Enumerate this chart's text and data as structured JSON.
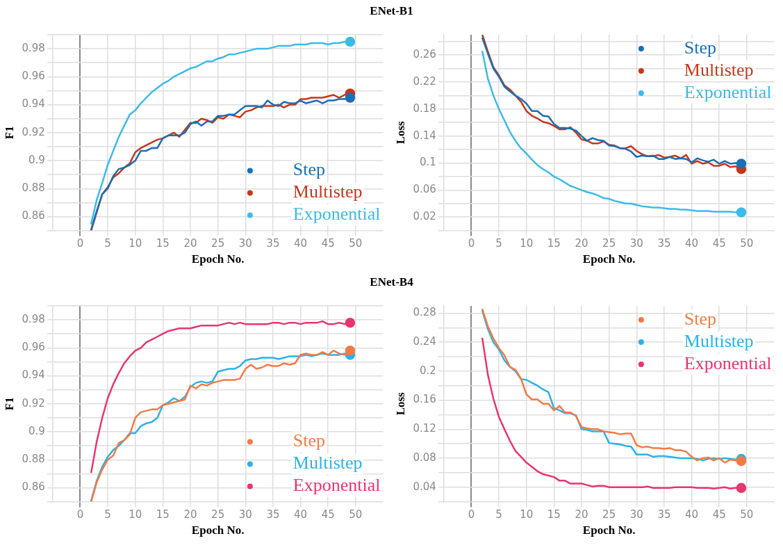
{
  "chart_data": [
    {
      "type": "line",
      "title": "ENet-B1",
      "xlabel": "Epoch No.",
      "ylabel": "F1",
      "legend": "bottom right",
      "grid": true,
      "xlim": [
        -5,
        55
      ],
      "xticks": [
        0,
        5,
        10,
        15,
        20,
        25,
        30,
        35,
        40,
        45,
        50
      ],
      "ylim": [
        0.85,
        0.99
      ],
      "yticks": [
        {
          "value": 0.85,
          "label": null
        },
        0.86,
        {
          "value": 0.87,
          "label": null
        },
        0.88,
        {
          "value": 0.89,
          "label": null
        },
        0.9,
        {
          "value": 0.91,
          "label": null
        },
        0.92,
        {
          "value": 0.93,
          "label": null
        },
        0.94,
        {
          "value": 0.95,
          "label": null
        },
        0.96,
        {
          "value": 0.97,
          "label": null
        },
        0.98,
        {
          "value": 0.99,
          "label": null
        }
      ],
      "x": [
        2,
        3,
        4,
        5,
        6,
        7,
        8,
        9,
        10,
        11,
        12,
        13,
        14,
        15,
        16,
        17,
        18,
        19,
        20,
        21,
        22,
        23,
        24,
        25,
        26,
        27,
        28,
        29,
        30,
        31,
        32,
        33,
        34,
        35,
        36,
        37,
        38,
        39,
        40,
        41,
        42,
        43,
        44,
        45,
        46,
        47,
        48,
        49
      ],
      "series": [
        {
          "name": "Step",
          "color": "#1a6fb5",
          "values": [
            0.851,
            0.864,
            0.876,
            0.88,
            0.889,
            0.894,
            0.895,
            0.897,
            0.9,
            0.907,
            0.907,
            0.909,
            0.909,
            0.916,
            0.918,
            0.918,
            0.918,
            0.92,
            0.926,
            0.928,
            0.925,
            0.928,
            0.928,
            0.932,
            0.932,
            0.933,
            0.933,
            0.936,
            0.939,
            0.939,
            0.939,
            0.938,
            0.943,
            0.94,
            0.939,
            0.942,
            0.941,
            0.941,
            0.943,
            0.941,
            0.942,
            0.943,
            0.941,
            0.943,
            0.943,
            0.944,
            0.944,
            0.945
          ]
        },
        {
          "name": "Multistep",
          "color": "#c8361a",
          "values": [
            0.85,
            0.863,
            0.876,
            0.881,
            0.888,
            0.891,
            0.895,
            0.898,
            0.906,
            0.909,
            0.911,
            0.913,
            0.915,
            0.916,
            0.918,
            0.92,
            0.917,
            0.922,
            0.927,
            0.927,
            0.93,
            0.929,
            0.927,
            0.931,
            0.93,
            0.933,
            0.932,
            0.931,
            0.935,
            0.936,
            0.938,
            0.939,
            0.939,
            0.939,
            0.94,
            0.938,
            0.94,
            0.94,
            0.944,
            0.944,
            0.945,
            0.945,
            0.945,
            0.946,
            0.947,
            0.945,
            0.947,
            0.948
          ]
        },
        {
          "name": "Exponential",
          "color": "#3bbbe8",
          "values": [
            0.855,
            0.872,
            0.884,
            0.897,
            0.907,
            0.917,
            0.925,
            0.933,
            0.936,
            0.941,
            0.945,
            0.949,
            0.952,
            0.955,
            0.957,
            0.96,
            0.962,
            0.964,
            0.966,
            0.967,
            0.969,
            0.971,
            0.971,
            0.973,
            0.974,
            0.976,
            0.976,
            0.977,
            0.978,
            0.979,
            0.98,
            0.98,
            0.98,
            0.981,
            0.982,
            0.982,
            0.982,
            0.983,
            0.983,
            0.983,
            0.984,
            0.984,
            0.984,
            0.983,
            0.984,
            0.984,
            0.985,
            0.985
          ]
        }
      ]
    },
    {
      "type": "line",
      "xlabel": "Epoch No.",
      "ylabel": "Loss",
      "legend": "top right",
      "grid": true,
      "xlim": [
        -5,
        55
      ],
      "xticks": [
        0,
        5,
        10,
        15,
        20,
        25,
        30,
        35,
        40,
        45,
        50
      ],
      "ylim": [
        0,
        0.29
      ],
      "yticks": [
        {
          "value": 0,
          "label": null
        },
        0.02,
        {
          "value": 0.04,
          "label": null
        },
        0.06,
        {
          "value": 0.08,
          "label": null
        },
        0.1,
        {
          "value": 0.12,
          "label": null
        },
        0.14,
        {
          "value": 0.16,
          "label": null
        },
        0.18,
        {
          "value": 0.2,
          "label": null
        },
        0.22,
        {
          "value": 0.24,
          "label": null
        },
        0.26,
        {
          "value": 0.28,
          "label": null
        }
      ],
      "x": [
        2,
        3,
        4,
        5,
        6,
        7,
        8,
        9,
        10,
        11,
        12,
        13,
        14,
        15,
        16,
        17,
        18,
        19,
        20,
        21,
        22,
        23,
        24,
        25,
        26,
        27,
        28,
        29,
        30,
        31,
        32,
        33,
        34,
        35,
        36,
        37,
        38,
        39,
        40,
        41,
        42,
        43,
        44,
        45,
        46,
        47,
        48,
        49
      ],
      "series": [
        {
          "name": "Step",
          "color": "#1a6fb5",
          "values": [
            0.285,
            0.262,
            0.24,
            0.228,
            0.213,
            0.206,
            0.2,
            0.195,
            0.188,
            0.177,
            0.177,
            0.17,
            0.169,
            0.158,
            0.152,
            0.152,
            0.151,
            0.148,
            0.14,
            0.133,
            0.137,
            0.134,
            0.133,
            0.126,
            0.125,
            0.122,
            0.121,
            0.117,
            0.109,
            0.111,
            0.11,
            0.111,
            0.106,
            0.106,
            0.109,
            0.106,
            0.107,
            0.106,
            0.101,
            0.107,
            0.104,
            0.102,
            0.105,
            0.099,
            0.103,
            0.099,
            0.1,
            0.099
          ]
        },
        {
          "name": "Multistep",
          "color": "#c8361a",
          "values": [
            0.29,
            0.265,
            0.242,
            0.23,
            0.215,
            0.209,
            0.2,
            0.191,
            0.177,
            0.17,
            0.166,
            0.161,
            0.159,
            0.155,
            0.15,
            0.15,
            0.153,
            0.145,
            0.135,
            0.133,
            0.129,
            0.129,
            0.132,
            0.127,
            0.126,
            0.122,
            0.122,
            0.125,
            0.118,
            0.113,
            0.11,
            0.11,
            0.112,
            0.108,
            0.109,
            0.111,
            0.107,
            0.112,
            0.099,
            0.103,
            0.099,
            0.101,
            0.096,
            0.096,
            0.099,
            0.094,
            0.095,
            0.091
          ]
        },
        {
          "name": "Exponential",
          "color": "#3bbbe8",
          "values": [
            0.265,
            0.225,
            0.2,
            0.18,
            0.163,
            0.146,
            0.133,
            0.122,
            0.114,
            0.105,
            0.097,
            0.091,
            0.086,
            0.08,
            0.076,
            0.071,
            0.066,
            0.063,
            0.06,
            0.057,
            0.055,
            0.052,
            0.048,
            0.047,
            0.044,
            0.042,
            0.04,
            0.04,
            0.038,
            0.036,
            0.035,
            0.034,
            0.034,
            0.033,
            0.032,
            0.032,
            0.031,
            0.031,
            0.03,
            0.029,
            0.029,
            0.029,
            0.028,
            0.028,
            0.028,
            0.028,
            0.027,
            0.027
          ]
        }
      ]
    },
    {
      "type": "line",
      "title": "ENet-B4",
      "xlabel": "Epoch No.",
      "ylabel": "F1",
      "legend": "bottom right",
      "grid": true,
      "xlim": [
        -5,
        55
      ],
      "xticks": [
        0,
        5,
        10,
        15,
        20,
        25,
        30,
        35,
        40,
        45,
        50
      ],
      "ylim": [
        0.85,
        0.99
      ],
      "yticks": [
        {
          "value": 0.85,
          "label": null
        },
        0.86,
        {
          "value": 0.87,
          "label": null
        },
        0.88,
        {
          "value": 0.89,
          "label": null
        },
        0.9,
        {
          "value": 0.91,
          "label": null
        },
        0.92,
        {
          "value": 0.93,
          "label": null
        },
        0.94,
        {
          "value": 0.95,
          "label": null
        },
        0.96,
        {
          "value": 0.97,
          "label": null
        },
        0.98,
        {
          "value": 0.99,
          "label": null
        }
      ],
      "x": [
        2,
        3,
        4,
        5,
        6,
        7,
        8,
        9,
        10,
        11,
        12,
        13,
        14,
        15,
        16,
        17,
        18,
        19,
        20,
        21,
        22,
        23,
        24,
        25,
        26,
        27,
        28,
        29,
        30,
        31,
        32,
        33,
        34,
        35,
        36,
        37,
        38,
        39,
        40,
        41,
        42,
        43,
        44,
        45,
        46,
        47,
        48,
        49
      ],
      "series": [
        {
          "name": "Step",
          "color": "#f47a45",
          "values": [
            0.85,
            0.864,
            0.873,
            0.88,
            0.883,
            0.892,
            0.894,
            0.898,
            0.91,
            0.914,
            0.915,
            0.916,
            0.916,
            0.919,
            0.92,
            0.921,
            0.922,
            0.923,
            0.933,
            0.931,
            0.934,
            0.933,
            0.935,
            0.936,
            0.937,
            0.937,
            0.937,
            0.938,
            0.945,
            0.948,
            0.945,
            0.946,
            0.948,
            0.947,
            0.947,
            0.949,
            0.948,
            0.949,
            0.955,
            0.956,
            0.955,
            0.955,
            0.957,
            0.955,
            0.958,
            0.956,
            0.955,
            0.958
          ]
        },
        {
          "name": "Multistep",
          "color": "#29b2ea",
          "values": [
            0.851,
            0.865,
            0.875,
            0.882,
            0.887,
            0.89,
            0.894,
            0.899,
            0.899,
            0.904,
            0.906,
            0.907,
            0.91,
            0.919,
            0.921,
            0.924,
            0.922,
            0.925,
            0.932,
            0.935,
            0.936,
            0.935,
            0.936,
            0.943,
            0.944,
            0.945,
            0.945,
            0.947,
            0.951,
            0.952,
            0.952,
            0.953,
            0.953,
            0.953,
            0.952,
            0.953,
            0.954,
            0.954,
            0.954,
            0.955,
            0.954,
            0.955,
            0.956,
            0.955,
            0.955,
            0.955,
            0.956,
            0.955
          ]
        },
        {
          "name": "Exponential",
          "color": "#e8356f",
          "values": [
            0.871,
            0.893,
            0.91,
            0.924,
            0.934,
            0.942,
            0.949,
            0.954,
            0.958,
            0.96,
            0.964,
            0.966,
            0.968,
            0.97,
            0.972,
            0.973,
            0.974,
            0.974,
            0.974,
            0.975,
            0.976,
            0.976,
            0.976,
            0.976,
            0.977,
            0.978,
            0.977,
            0.978,
            0.977,
            0.977,
            0.977,
            0.977,
            0.977,
            0.978,
            0.978,
            0.977,
            0.978,
            0.978,
            0.977,
            0.978,
            0.978,
            0.978,
            0.979,
            0.977,
            0.977,
            0.978,
            0.977,
            0.978
          ]
        }
      ]
    },
    {
      "type": "line",
      "xlabel": "Epoch No.",
      "ylabel": "Loss",
      "legend": "top right",
      "grid": true,
      "xlim": [
        -5,
        55
      ],
      "xticks": [
        0,
        5,
        10,
        15,
        20,
        25,
        30,
        35,
        40,
        45,
        50
      ],
      "ylim": [
        0.02,
        0.29
      ],
      "yticks": [
        {
          "value": 0.02,
          "label": null
        },
        0.04,
        {
          "value": 0.06,
          "label": null
        },
        0.08,
        {
          "value": 0.1,
          "label": null
        },
        0.12,
        {
          "value": 0.14,
          "label": null
        },
        0.16,
        {
          "value": 0.18,
          "label": null
        },
        0.2,
        {
          "value": 0.22,
          "label": null
        },
        0.24,
        {
          "value": 0.26,
          "label": null
        },
        0.28
      ],
      "x": [
        2,
        3,
        4,
        5,
        6,
        7,
        8,
        9,
        10,
        11,
        12,
        13,
        14,
        15,
        16,
        17,
        18,
        19,
        20,
        21,
        22,
        23,
        24,
        25,
        26,
        27,
        28,
        29,
        30,
        31,
        32,
        33,
        34,
        35,
        36,
        37,
        38,
        39,
        40,
        41,
        42,
        43,
        44,
        45,
        46,
        47,
        48,
        49
      ],
      "series": [
        {
          "name": "Step",
          "color": "#f47a45",
          "values": [
            0.285,
            0.262,
            0.245,
            0.232,
            0.222,
            0.206,
            0.202,
            0.19,
            0.168,
            0.161,
            0.161,
            0.155,
            0.155,
            0.146,
            0.152,
            0.143,
            0.143,
            0.138,
            0.123,
            0.121,
            0.12,
            0.12,
            0.117,
            0.116,
            0.115,
            0.113,
            0.114,
            0.114,
            0.098,
            0.095,
            0.096,
            0.094,
            0.094,
            0.093,
            0.094,
            0.091,
            0.091,
            0.089,
            0.082,
            0.077,
            0.08,
            0.081,
            0.077,
            0.08,
            0.074,
            0.078,
            0.077,
            0.076
          ]
        },
        {
          "name": "Multistep",
          "color": "#29b2ea",
          "values": [
            0.283,
            0.258,
            0.24,
            0.23,
            0.215,
            0.206,
            0.2,
            0.189,
            0.188,
            0.184,
            0.18,
            0.175,
            0.171,
            0.149,
            0.146,
            0.142,
            0.142,
            0.139,
            0.12,
            0.119,
            0.117,
            0.117,
            0.117,
            0.101,
            0.1,
            0.099,
            0.097,
            0.096,
            0.085,
            0.085,
            0.085,
            0.082,
            0.083,
            0.083,
            0.082,
            0.081,
            0.08,
            0.08,
            0.08,
            0.079,
            0.077,
            0.079,
            0.08,
            0.079,
            0.08,
            0.079,
            0.078,
            0.079
          ]
        },
        {
          "name": "Exponential",
          "color": "#e8356f",
          "values": [
            0.245,
            0.195,
            0.162,
            0.137,
            0.12,
            0.104,
            0.09,
            0.082,
            0.074,
            0.068,
            0.062,
            0.058,
            0.056,
            0.054,
            0.049,
            0.049,
            0.045,
            0.045,
            0.045,
            0.043,
            0.041,
            0.042,
            0.042,
            0.04,
            0.04,
            0.04,
            0.04,
            0.04,
            0.04,
            0.04,
            0.041,
            0.039,
            0.039,
            0.039,
            0.039,
            0.04,
            0.04,
            0.04,
            0.04,
            0.039,
            0.039,
            0.039,
            0.038,
            0.039,
            0.04,
            0.038,
            0.039,
            0.039
          ]
        }
      ]
    }
  ]
}
